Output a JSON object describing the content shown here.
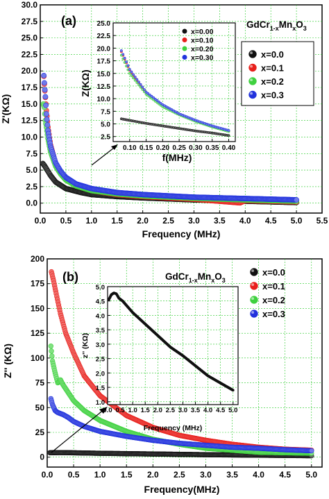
{
  "chart_data": [
    {
      "panel": "(a)",
      "type": "scatter",
      "xlabel": "Frequency (MHz)",
      "ylabel": "Z'(KΩ)",
      "xlim": [
        0,
        5.5
      ],
      "ylim": [
        -1.5,
        30
      ],
      "xticks": [
        "0.0",
        "0.5",
        "1.0",
        "1.5",
        "2.0",
        "2.5",
        "3.0",
        "3.5",
        "4.0",
        "4.5",
        "5.0",
        "5.5"
      ],
      "yticks": [
        "0.0",
        "2.5",
        "5.0",
        "7.5",
        "10.0",
        "12.5",
        "15.0",
        "17.5",
        "20.0",
        "22.5",
        "25.0",
        "27.5",
        "30.0"
      ],
      "grid": true,
      "legend_title": "GdCr1-xMnxO3",
      "legend_title_parts": {
        "a": "GdCr",
        "b": "1-x",
        "c": "Mn",
        "d": "x",
        "e": "O",
        "f": "3"
      },
      "legend_position": "right",
      "series": [
        {
          "name": "x=0.0",
          "color": "#111111",
          "points": [
            [
              0.05,
              6.0
            ],
            [
              0.08,
              5.7
            ],
            [
              0.12,
              5.2
            ],
            [
              0.2,
              4.2
            ],
            [
              0.3,
              3.2
            ],
            [
              0.5,
              2.2
            ],
            [
              0.8,
              1.6
            ],
            [
              1.0,
              1.3
            ],
            [
              1.5,
              1.0
            ],
            [
              2.0,
              0.8
            ],
            [
              2.5,
              0.65
            ],
            [
              3.0,
              0.5
            ],
            [
              3.5,
              0.4
            ],
            [
              4.0,
              0.3
            ],
            [
              4.5,
              0.2
            ],
            [
              5.0,
              0.1
            ]
          ]
        },
        {
          "name": "x=0.1",
          "color": "#e8201c",
          "points": [
            [
              0.07,
              19.2
            ],
            [
              0.08,
              18.0
            ],
            [
              0.1,
              16.0
            ],
            [
              0.12,
              14.0
            ],
            [
              0.15,
              11.5
            ],
            [
              0.2,
              8.8
            ],
            [
              0.3,
              6.0
            ],
            [
              0.4,
              4.6
            ],
            [
              0.5,
              3.6
            ],
            [
              0.7,
              2.6
            ],
            [
              1.0,
              1.9
            ],
            [
              1.5,
              1.3
            ],
            [
              2.0,
              1.0
            ],
            [
              3.0,
              0.6
            ],
            [
              3.9,
              0.05
            ],
            [
              4.0,
              0.4
            ],
            [
              5.0,
              0.2
            ]
          ]
        },
        {
          "name": "x=0.2",
          "color": "#3fd13f",
          "points": [
            [
              0.06,
              15.0
            ],
            [
              0.08,
              14.5
            ],
            [
              0.1,
              12.5
            ],
            [
              0.12,
              11.5
            ],
            [
              0.15,
              9.8
            ],
            [
              0.2,
              7.8
            ],
            [
              0.3,
              5.6
            ],
            [
              0.4,
              4.4
            ],
            [
              0.5,
              3.5
            ],
            [
              0.7,
              2.6
            ],
            [
              1.0,
              1.9
            ],
            [
              1.5,
              1.4
            ],
            [
              2.0,
              1.1
            ],
            [
              3.0,
              0.75
            ],
            [
              4.0,
              0.5
            ],
            [
              5.0,
              0.3
            ]
          ]
        },
        {
          "name": "x=0.3",
          "color": "#2233dd",
          "points": [
            [
              0.07,
              19.3
            ],
            [
              0.08,
              18.2
            ],
            [
              0.1,
              16.1
            ],
            [
              0.12,
              13.5
            ],
            [
              0.15,
              11.0
            ],
            [
              0.2,
              8.6
            ],
            [
              0.3,
              6.1
            ],
            [
              0.4,
              4.8
            ],
            [
              0.5,
              3.9
            ],
            [
              0.7,
              2.9
            ],
            [
              1.0,
              2.2
            ],
            [
              1.5,
              1.6
            ],
            [
              2.0,
              1.3
            ],
            [
              2.5,
              1.1
            ],
            [
              3.0,
              0.9
            ],
            [
              3.5,
              0.8
            ],
            [
              4.0,
              0.7
            ],
            [
              4.5,
              0.6
            ],
            [
              5.0,
              0.5
            ]
          ]
        }
      ],
      "inset": {
        "xlabel": "f(MHz)",
        "ylabel": "Z(KΩ)",
        "xlim": [
          0.05,
          0.42
        ],
        "ylim": [
          1.5,
          25
        ],
        "xticks": [
          "0.10",
          "0.15",
          "0.20",
          "0.25",
          "0.30",
          "0.35",
          "0.40"
        ],
        "yticks": [
          "2.5",
          "5.0",
          "7.5",
          "10.0",
          "12.5",
          "15.0",
          "17.5",
          "20.0",
          "22.5",
          "25.0"
        ],
        "legend": [
          "x=0.00",
          "x=0.10",
          "x=0.20",
          "x=0.30"
        ],
        "series": [
          {
            "name": "x=0.00",
            "color": "#111111",
            "points": [
              [
                0.075,
                6.0
              ],
              [
                0.1,
                5.7
              ],
              [
                0.15,
                5.1
              ],
              [
                0.2,
                4.6
              ],
              [
                0.25,
                4.1
              ],
              [
                0.3,
                3.6
              ],
              [
                0.35,
                3.2
              ],
              [
                0.4,
                2.7
              ]
            ]
          },
          {
            "name": "x=0.10",
            "color": "#e8201c",
            "points": [
              [
                0.075,
                19.3
              ],
              [
                0.1,
                15.6
              ],
              [
                0.15,
                11.1
              ],
              [
                0.2,
                8.6
              ],
              [
                0.25,
                6.9
              ],
              [
                0.3,
                5.6
              ],
              [
                0.35,
                4.5
              ],
              [
                0.4,
                3.6
              ]
            ]
          },
          {
            "name": "x=0.20",
            "color": "#3fd13f",
            "points": [
              [
                0.075,
                18.6
              ],
              [
                0.1,
                15.0
              ],
              [
                0.15,
                10.9
              ],
              [
                0.2,
                8.4
              ],
              [
                0.25,
                6.8
              ],
              [
                0.3,
                5.5
              ],
              [
                0.35,
                4.4
              ],
              [
                0.4,
                3.5
              ]
            ]
          },
          {
            "name": "x=0.30",
            "color": "#2233dd",
            "points": [
              [
                0.075,
                19.5
              ],
              [
                0.1,
                15.8
              ],
              [
                0.15,
                11.3
              ],
              [
                0.2,
                8.8
              ],
              [
                0.25,
                7.0
              ],
              [
                0.3,
                5.7
              ],
              [
                0.35,
                4.6
              ],
              [
                0.4,
                3.7
              ]
            ]
          }
        ]
      }
    },
    {
      "panel": "(b)",
      "type": "scatter",
      "xlabel": "Frequency(MHz)",
      "ylabel": "Z'' (KΩ)",
      "xlim": [
        0,
        5.2
      ],
      "ylim": [
        -10,
        200
      ],
      "xticks": [
        "0.0",
        "0.5",
        "1.0",
        "1.5",
        "2.0",
        "2.5",
        "3.0",
        "3.5",
        "4.0",
        "4.5",
        "5.0"
      ],
      "yticks": [
        "0",
        "25",
        "50",
        "75",
        "100",
        "125",
        "150",
        "175",
        "200"
      ],
      "grid": true,
      "legend_title": "GdCr1-xMnxO3",
      "legend_title_parts": {
        "a": "GdCr",
        "b": "1-x",
        "c": "Mn",
        "d": "x",
        "e": "O",
        "f": "3"
      },
      "legend_position": "right",
      "series": [
        {
          "name": "x=0.0",
          "color": "#111111",
          "points": [
            [
              0.05,
              4.5
            ],
            [
              0.3,
              4.6
            ],
            [
              1.0,
              3.9
            ],
            [
              2.0,
              3.2
            ],
            [
              3.0,
              2.5
            ],
            [
              4.0,
              2.0
            ],
            [
              5.0,
              1.5
            ]
          ]
        },
        {
          "name": "x=0.1",
          "color": "#e8201c",
          "points": [
            [
              0.08,
              187
            ],
            [
              0.12,
              178
            ],
            [
              0.17,
              165
            ],
            [
              0.25,
              145
            ],
            [
              0.35,
              125
            ],
            [
              0.5,
              105
            ],
            [
              0.7,
              82
            ],
            [
              1.0,
              62
            ],
            [
              1.5,
              42
            ],
            [
              2.0,
              30
            ],
            [
              2.5,
              22
            ],
            [
              3.0,
              17
            ],
            [
              3.5,
              13
            ],
            [
              4.0,
              10
            ],
            [
              4.5,
              8
            ],
            [
              5.0,
              7
            ]
          ]
        },
        {
          "name": "x=0.2",
          "color": "#3fd13f",
          "points": [
            [
              0.07,
              112
            ],
            [
              0.1,
              97
            ],
            [
              0.15,
              85
            ],
            [
              0.2,
              75
            ],
            [
              0.25,
              78
            ],
            [
              0.3,
              73
            ],
            [
              0.4,
              65
            ],
            [
              0.5,
              57
            ],
            [
              0.7,
              47
            ],
            [
              1.0,
              37
            ],
            [
              1.5,
              26
            ],
            [
              2.0,
              18
            ],
            [
              2.5,
              13
            ],
            [
              3.0,
              9
            ],
            [
              3.5,
              7
            ],
            [
              4.0,
              5
            ],
            [
              5.0,
              4
            ]
          ]
        },
        {
          "name": "x=0.3",
          "color": "#2233dd",
          "points": [
            [
              0.07,
              59
            ],
            [
              0.1,
              53
            ],
            [
              0.15,
              47
            ],
            [
              0.2,
              45
            ],
            [
              0.3,
              43
            ],
            [
              0.4,
              40
            ],
            [
              0.5,
              36
            ],
            [
              0.7,
              31
            ],
            [
              1.0,
              26
            ],
            [
              1.5,
              21
            ],
            [
              2.0,
              17
            ],
            [
              2.5,
              14
            ],
            [
              3.0,
              12
            ],
            [
              3.5,
              10
            ],
            [
              4.0,
              9
            ],
            [
              4.5,
              7.5
            ],
            [
              5.0,
              6.5
            ]
          ]
        }
      ],
      "inset": {
        "xlabel": "Frequency (MHz)",
        "ylabel": "z'' (KΩ)",
        "xlim": [
          0,
          5.2
        ],
        "ylim": [
          0.9,
          5.0
        ],
        "xticks": [
          "0.0",
          "0.5",
          "1.0",
          "1.5",
          "2.0",
          "2.5",
          "3.0",
          "3.5",
          "4.0",
          "4.5",
          "5.0"
        ],
        "yticks": [
          "1.0",
          "1.5",
          "2.0",
          "2.5",
          "3.0",
          "3.5",
          "4.0",
          "4.5",
          "5.0"
        ],
        "series": [
          {
            "name": "x=0.0",
            "color": "#111111",
            "points": [
              [
                0.05,
                4.55
              ],
              [
                0.15,
                4.72
              ],
              [
                0.25,
                4.78
              ],
              [
                0.35,
                4.75
              ],
              [
                0.45,
                4.6
              ],
              [
                0.6,
                4.5
              ],
              [
                0.8,
                4.3
              ],
              [
                1.0,
                4.1
              ],
              [
                1.5,
                3.7
              ],
              [
                2.0,
                3.3
              ],
              [
                2.5,
                2.9
              ],
              [
                3.0,
                2.6
              ],
              [
                3.5,
                2.25
              ],
              [
                4.0,
                1.9
              ],
              [
                4.5,
                1.65
              ],
              [
                5.0,
                1.4
              ]
            ]
          }
        ]
      }
    }
  ]
}
